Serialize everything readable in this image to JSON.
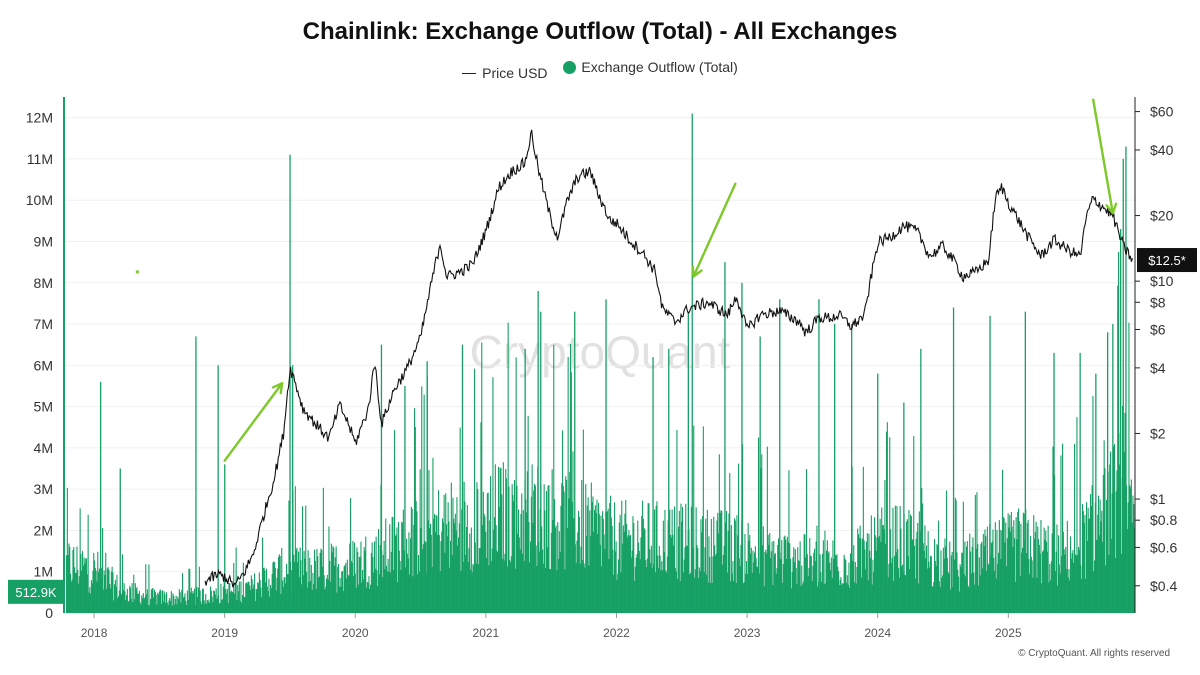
{
  "title": "Chainlink: Exchange Outflow (Total) - All Exchanges",
  "legend": {
    "price_label": "Price USD",
    "outflow_label": "Exchange Outflow (Total)"
  },
  "watermark": "CryptoQuant",
  "footer": "© CryptoQuant. All rights reserved",
  "colors": {
    "outflow": "#16a065",
    "price": "#111111",
    "arrow": "#7dc82a",
    "price_badge": "#111111",
    "outflow_badge": "#16a065"
  },
  "chart_data": {
    "type": "bar",
    "series": [
      {
        "name": "Exchange Outflow (Total)",
        "type": "bar",
        "axis": "left"
      },
      {
        "name": "Price USD",
        "type": "line",
        "axis": "right",
        "scale": "log"
      }
    ],
    "y_left": {
      "ticks": [
        0,
        1000000,
        2000000,
        3000000,
        4000000,
        5000000,
        6000000,
        7000000,
        8000000,
        9000000,
        10000000,
        11000000,
        12000000
      ],
      "tick_labels": [
        "0",
        "1M",
        "2M",
        "3M",
        "4M",
        "5M",
        "6M",
        "7M",
        "8M",
        "9M",
        "10M",
        "11M",
        "12M"
      ],
      "range": [
        0,
        12500000
      ]
    },
    "y_right": {
      "scale": "log",
      "ticks": [
        0.4,
        0.6,
        0.8,
        1,
        2,
        4,
        6,
        8,
        10,
        20,
        40,
        60
      ],
      "tick_labels": [
        "$0.4",
        "$0.6",
        "$0.8",
        "$1",
        "$2",
        "$4",
        "$6",
        "$8",
        "$10",
        "$20",
        "$40",
        "$60"
      ],
      "range": [
        0.3,
        70
      ]
    },
    "x": {
      "range": [
        2017.77,
        2025.97
      ],
      "ticks": [
        2018,
        2019,
        2020,
        2021,
        2022,
        2023,
        2024,
        2025
      ],
      "tick_labels": [
        "2018",
        "2019",
        "2020",
        "2021",
        "2022",
        "2023",
        "2024",
        "2025"
      ]
    },
    "price_points": [
      [
        2018.85,
        0.42
      ],
      [
        2018.95,
        0.45
      ],
      [
        2019.0,
        0.44
      ],
      [
        2019.08,
        0.4
      ],
      [
        2019.15,
        0.46
      ],
      [
        2019.22,
        0.56
      ],
      [
        2019.3,
        0.85
      ],
      [
        2019.38,
        1.25
      ],
      [
        2019.45,
        2.0
      ],
      [
        2019.5,
        4.0
      ],
      [
        2019.53,
        3.6
      ],
      [
        2019.6,
        2.6
      ],
      [
        2019.7,
        2.2
      ],
      [
        2019.8,
        1.9
      ],
      [
        2019.88,
        2.7
      ],
      [
        2019.95,
        2.2
      ],
      [
        2020.0,
        1.8
      ],
      [
        2020.1,
        2.6
      ],
      [
        2020.15,
        4.3
      ],
      [
        2020.2,
        2.2
      ],
      [
        2020.3,
        3.2
      ],
      [
        2020.4,
        4.0
      ],
      [
        2020.5,
        5.5
      ],
      [
        2020.6,
        11.0
      ],
      [
        2020.65,
        15.0
      ],
      [
        2020.7,
        10.5
      ],
      [
        2020.8,
        11.0
      ],
      [
        2020.9,
        12.0
      ],
      [
        2021.0,
        17.0
      ],
      [
        2021.1,
        27.0
      ],
      [
        2021.2,
        32.0
      ],
      [
        2021.3,
        35.0
      ],
      [
        2021.35,
        48.0
      ],
      [
        2021.4,
        33.0
      ],
      [
        2021.45,
        25.0
      ],
      [
        2021.5,
        19.0
      ],
      [
        2021.55,
        16.0
      ],
      [
        2021.62,
        23.0
      ],
      [
        2021.7,
        30.0
      ],
      [
        2021.8,
        32.0
      ],
      [
        2021.85,
        26.0
      ],
      [
        2021.95,
        19.0
      ],
      [
        2022.0,
        18.5
      ],
      [
        2022.1,
        15.5
      ],
      [
        2022.2,
        13.5
      ],
      [
        2022.3,
        11.0
      ],
      [
        2022.35,
        7.5
      ],
      [
        2022.45,
        6.5
      ],
      [
        2022.55,
        7.5
      ],
      [
        2022.7,
        8.0
      ],
      [
        2022.85,
        7.0
      ],
      [
        2022.92,
        8.5
      ],
      [
        2023.0,
        6.0
      ],
      [
        2023.1,
        7.0
      ],
      [
        2023.25,
        7.3
      ],
      [
        2023.4,
        6.5
      ],
      [
        2023.45,
        5.8
      ],
      [
        2023.55,
        6.8
      ],
      [
        2023.65,
        6.8
      ],
      [
        2023.7,
        7.0
      ],
      [
        2023.8,
        6.2
      ],
      [
        2023.9,
        7.0
      ],
      [
        2023.95,
        10.5
      ],
      [
        2024.0,
        15.0
      ],
      [
        2024.1,
        16.0
      ],
      [
        2024.2,
        18.0
      ],
      [
        2024.3,
        17.0
      ],
      [
        2024.4,
        13.0
      ],
      [
        2024.5,
        14.5
      ],
      [
        2024.6,
        12.0
      ],
      [
        2024.65,
        10.5
      ],
      [
        2024.75,
        11.0
      ],
      [
        2024.85,
        12.5
      ],
      [
        2024.9,
        24.0
      ],
      [
        2024.95,
        27.0
      ],
      [
        2025.0,
        23.0
      ],
      [
        2025.08,
        19.0
      ],
      [
        2025.15,
        16.0
      ],
      [
        2025.25,
        13.0
      ],
      [
        2025.35,
        15.5
      ],
      [
        2025.45,
        14.0
      ],
      [
        2025.55,
        13.0
      ],
      [
        2025.6,
        20.0
      ],
      [
        2025.65,
        24.0
      ],
      [
        2025.72,
        22.0
      ],
      [
        2025.8,
        20.0
      ],
      [
        2025.88,
        14.5
      ],
      [
        2025.95,
        12.5
      ]
    ],
    "outflow_spikes": [
      [
        2018.05,
        5600000
      ],
      [
        2018.2,
        3500000
      ],
      [
        2019.0,
        3600000
      ],
      [
        2018.78,
        6700000
      ],
      [
        2018.95,
        6000000
      ],
      [
        2019.5,
        11100000
      ],
      [
        2019.52,
        6000000
      ],
      [
        2020.2,
        6500000
      ],
      [
        2020.55,
        6100000
      ],
      [
        2020.82,
        6500000
      ],
      [
        2020.38,
        5500000
      ],
      [
        2021.4,
        7800000
      ],
      [
        2021.42,
        7300000
      ],
      [
        2021.3,
        6400000
      ],
      [
        2021.68,
        7300000
      ],
      [
        2021.92,
        7600000
      ],
      [
        2022.28,
        6200000
      ],
      [
        2022.4,
        6400000
      ],
      [
        2022.55,
        7300000
      ],
      [
        2022.58,
        12100000
      ],
      [
        2022.83,
        8500000
      ],
      [
        2022.96,
        8000000
      ],
      [
        2023.1,
        6700000
      ],
      [
        2023.25,
        7600000
      ],
      [
        2023.55,
        7600000
      ],
      [
        2023.67,
        7000000
      ],
      [
        2023.8,
        7000000
      ],
      [
        2024.0,
        5800000
      ],
      [
        2024.2,
        5100000
      ],
      [
        2024.33,
        6400000
      ],
      [
        2024.58,
        7400000
      ],
      [
        2024.86,
        7200000
      ],
      [
        2025.13,
        7300000
      ],
      [
        2025.35,
        6300000
      ],
      [
        2025.55,
        6300000
      ],
      [
        2025.67,
        5800000
      ],
      [
        2025.76,
        6800000
      ],
      [
        2025.8,
        7000000
      ],
      [
        2025.86,
        9300000
      ],
      [
        2025.88,
        11000000
      ],
      [
        2025.9,
        11300000
      ],
      [
        2025.84,
        7200000
      ]
    ],
    "outflow_baseline": [
      [
        2017.77,
        1500000
      ],
      [
        2018.0,
        1300000
      ],
      [
        2018.2,
        700000
      ],
      [
        2018.4,
        500000
      ],
      [
        2018.6,
        450000
      ],
      [
        2018.9,
        550000
      ],
      [
        2019.2,
        750000
      ],
      [
        2019.45,
        1300000
      ],
      [
        2019.7,
        1300000
      ],
      [
        2020.0,
        1500000
      ],
      [
        2020.2,
        1800000
      ],
      [
        2020.5,
        2400000
      ],
      [
        2020.8,
        2700000
      ],
      [
        2021.1,
        3000000
      ],
      [
        2021.4,
        3000000
      ],
      [
        2021.7,
        2700000
      ],
      [
        2022.0,
        2200000
      ],
      [
        2022.3,
        2200000
      ],
      [
        2022.6,
        2100000
      ],
      [
        2022.9,
        2000000
      ],
      [
        2023.2,
        1700000
      ],
      [
        2023.5,
        1500000
      ],
      [
        2023.8,
        1600000
      ],
      [
        2024.1,
        2200000
      ],
      [
        2024.3,
        1900000
      ],
      [
        2024.6,
        1300000
      ],
      [
        2024.9,
        1800000
      ],
      [
        2025.1,
        2100000
      ],
      [
        2025.4,
        1700000
      ],
      [
        2025.6,
        2300000
      ],
      [
        2025.8,
        3300000
      ],
      [
        2025.88,
        4200000
      ],
      [
        2025.97,
        1800000
      ]
    ],
    "current_price_label": "$12.5*",
    "current_outflow_label": "512.9K"
  }
}
